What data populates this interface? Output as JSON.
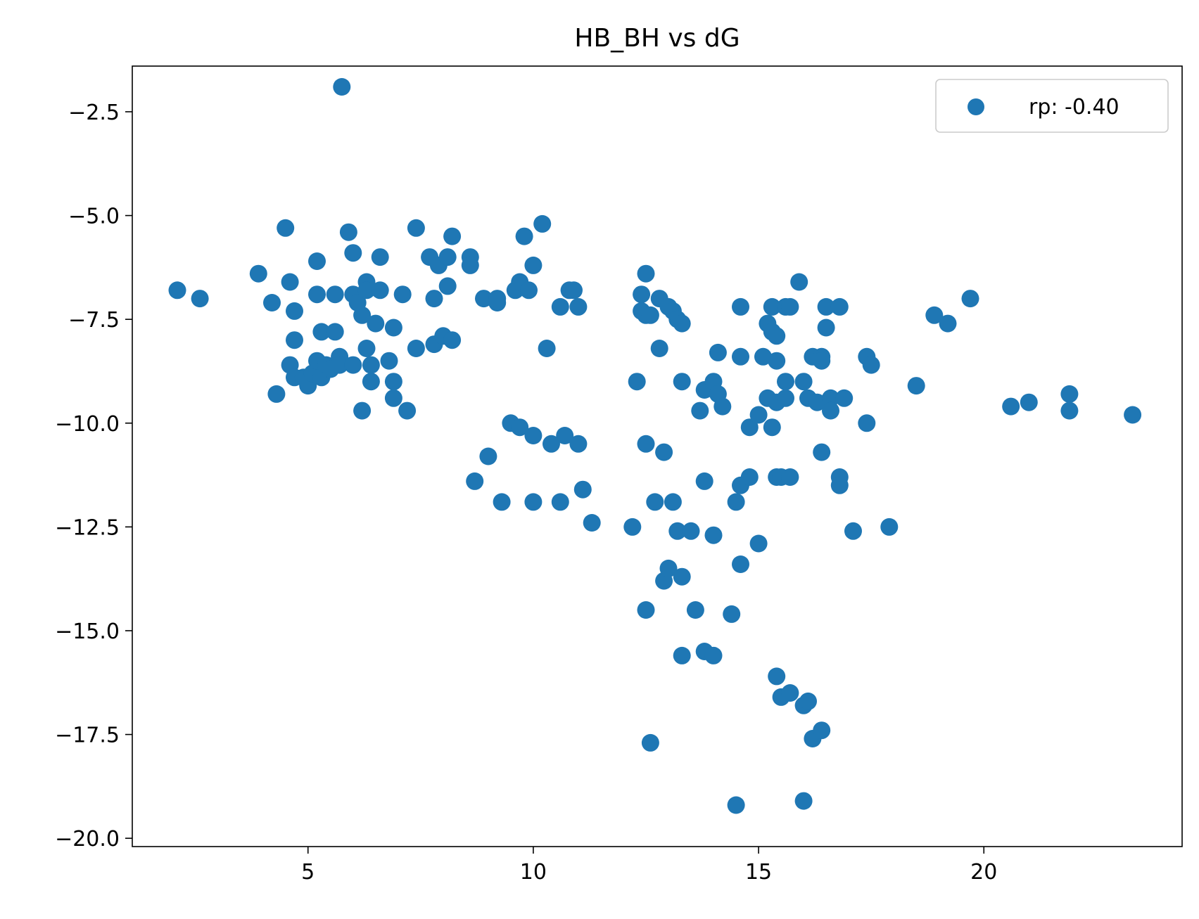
{
  "chart_data": {
    "type": "scatter",
    "title": "HB_BH vs dG",
    "xlabel": "",
    "ylabel": "",
    "xlim": [
      1.1,
      24.4
    ],
    "ylim": [
      -20.2,
      -1.4
    ],
    "xticks": [
      5,
      10,
      15,
      20
    ],
    "yticks": [
      -2.5,
      -5.0,
      -7.5,
      -10.0,
      -12.5,
      -15.0,
      -17.5,
      -20.0
    ],
    "xtick_labels": [
      "5",
      "10",
      "15",
      "20"
    ],
    "ytick_labels": [
      "−2.5",
      "−5.0",
      "−7.5",
      "−10.0",
      "−12.5",
      "−15.0",
      "−17.5",
      "−20.0"
    ],
    "grid": false,
    "legend_position": "top-right",
    "marker_color": "#1f77b4",
    "series": [
      {
        "name": "rp: -0.40",
        "points": [
          [
            2.1,
            -6.8
          ],
          [
            2.6,
            -7.0
          ],
          [
            3.9,
            -6.4
          ],
          [
            4.2,
            -7.1
          ],
          [
            4.3,
            -9.3
          ],
          [
            4.5,
            -5.3
          ],
          [
            4.6,
            -6.6
          ],
          [
            4.6,
            -8.6
          ],
          [
            4.7,
            -7.3
          ],
          [
            4.7,
            -8.0
          ],
          [
            4.7,
            -8.9
          ],
          [
            4.9,
            -8.9
          ],
          [
            5.0,
            -9.1
          ],
          [
            5.1,
            -8.8
          ],
          [
            5.2,
            -6.1
          ],
          [
            5.2,
            -6.9
          ],
          [
            5.2,
            -8.5
          ],
          [
            5.3,
            -7.8
          ],
          [
            5.3,
            -8.9
          ],
          [
            5.4,
            -8.6
          ],
          [
            5.5,
            -8.7
          ],
          [
            5.6,
            -6.9
          ],
          [
            5.6,
            -7.8
          ],
          [
            5.7,
            -8.4
          ],
          [
            5.7,
            -8.6
          ],
          [
            5.75,
            -1.9
          ],
          [
            5.9,
            -5.4
          ],
          [
            6.0,
            -5.9
          ],
          [
            6.0,
            -6.9
          ],
          [
            6.0,
            -8.6
          ],
          [
            6.1,
            -7.1
          ],
          [
            6.2,
            -7.4
          ],
          [
            6.2,
            -9.7
          ],
          [
            6.3,
            -6.6
          ],
          [
            6.3,
            -8.2
          ],
          [
            6.3,
            -6.8
          ],
          [
            6.4,
            -8.6
          ],
          [
            6.4,
            -9.0
          ],
          [
            6.5,
            -7.6
          ],
          [
            6.6,
            -6.0
          ],
          [
            6.6,
            -6.8
          ],
          [
            6.8,
            -8.5
          ],
          [
            6.9,
            -7.7
          ],
          [
            6.9,
            -9.0
          ],
          [
            6.9,
            -9.4
          ],
          [
            7.1,
            -6.9
          ],
          [
            7.2,
            -9.7
          ],
          [
            7.4,
            -8.2
          ],
          [
            7.4,
            -5.3
          ],
          [
            7.7,
            -6.0
          ],
          [
            7.8,
            -7.0
          ],
          [
            7.8,
            -8.1
          ],
          [
            7.9,
            -6.2
          ],
          [
            8.0,
            -7.9
          ],
          [
            8.1,
            -6.0
          ],
          [
            8.1,
            -6.7
          ],
          [
            8.2,
            -5.5
          ],
          [
            8.2,
            -8.0
          ],
          [
            8.6,
            -6.0
          ],
          [
            8.6,
            -6.2
          ],
          [
            8.7,
            -11.4
          ],
          [
            8.9,
            -7.0
          ],
          [
            9.0,
            -10.8
          ],
          [
            9.2,
            -7.1
          ],
          [
            9.2,
            -7.0
          ],
          [
            9.3,
            -11.9
          ],
          [
            9.5,
            -10.0
          ],
          [
            9.6,
            -6.8
          ],
          [
            9.7,
            -6.6
          ],
          [
            9.7,
            -10.1
          ],
          [
            9.8,
            -5.5
          ],
          [
            9.9,
            -6.8
          ],
          [
            10.0,
            -6.2
          ],
          [
            10.0,
            -10.3
          ],
          [
            10.0,
            -11.9
          ],
          [
            10.2,
            -5.2
          ],
          [
            10.3,
            -8.2
          ],
          [
            10.4,
            -10.5
          ],
          [
            10.6,
            -7.2
          ],
          [
            10.6,
            -11.9
          ],
          [
            10.7,
            -10.3
          ],
          [
            10.8,
            -6.8
          ],
          [
            10.9,
            -6.8
          ],
          [
            11.0,
            -7.2
          ],
          [
            11.0,
            -10.5
          ],
          [
            11.1,
            -11.6
          ],
          [
            11.3,
            -12.4
          ],
          [
            12.2,
            -12.5
          ],
          [
            12.3,
            -9.0
          ],
          [
            12.4,
            -6.9
          ],
          [
            12.4,
            -7.3
          ],
          [
            12.5,
            -6.4
          ],
          [
            12.5,
            -7.4
          ],
          [
            12.5,
            -10.5
          ],
          [
            12.5,
            -14.5
          ],
          [
            12.6,
            -7.4
          ],
          [
            12.6,
            -17.7
          ],
          [
            12.7,
            -11.9
          ],
          [
            12.8,
            -7.0
          ],
          [
            12.8,
            -8.2
          ],
          [
            12.9,
            -10.7
          ],
          [
            12.9,
            -13.8
          ],
          [
            13.0,
            -7.2
          ],
          [
            13.0,
            -13.5
          ],
          [
            13.1,
            -7.3
          ],
          [
            13.1,
            -11.9
          ],
          [
            13.2,
            -7.5
          ],
          [
            13.2,
            -12.6
          ],
          [
            13.3,
            -7.6
          ],
          [
            13.3,
            -9.0
          ],
          [
            13.3,
            -13.7
          ],
          [
            13.3,
            -15.6
          ],
          [
            13.5,
            -12.6
          ],
          [
            13.6,
            -14.5
          ],
          [
            13.7,
            -9.7
          ],
          [
            13.8,
            -9.2
          ],
          [
            13.8,
            -11.4
          ],
          [
            13.8,
            -15.5
          ],
          [
            14.0,
            -9.0
          ],
          [
            14.0,
            -12.7
          ],
          [
            14.0,
            -15.6
          ],
          [
            14.1,
            -8.3
          ],
          [
            14.1,
            -9.3
          ],
          [
            14.2,
            -9.6
          ],
          [
            14.4,
            -14.6
          ],
          [
            14.5,
            -11.9
          ],
          [
            14.5,
            -19.2
          ],
          [
            14.6,
            -7.2
          ],
          [
            14.6,
            -8.4
          ],
          [
            14.6,
            -11.5
          ],
          [
            14.6,
            -13.4
          ],
          [
            14.8,
            -10.1
          ],
          [
            14.8,
            -11.3
          ],
          [
            15.0,
            -9.8
          ],
          [
            15.0,
            -12.9
          ],
          [
            15.1,
            -8.4
          ],
          [
            15.2,
            -7.6
          ],
          [
            15.2,
            -9.4
          ],
          [
            15.3,
            -7.2
          ],
          [
            15.3,
            -7.8
          ],
          [
            15.3,
            -10.1
          ],
          [
            15.4,
            -7.9
          ],
          [
            15.4,
            -8.5
          ],
          [
            15.4,
            -9.5
          ],
          [
            15.4,
            -11.3
          ],
          [
            15.4,
            -16.1
          ],
          [
            15.5,
            -11.3
          ],
          [
            15.5,
            -16.6
          ],
          [
            15.6,
            -9.0
          ],
          [
            15.6,
            -7.2
          ],
          [
            15.6,
            -9.4
          ],
          [
            15.7,
            -7.2
          ],
          [
            15.7,
            -11.3
          ],
          [
            15.7,
            -16.5
          ],
          [
            15.9,
            -6.6
          ],
          [
            16.0,
            -9.0
          ],
          [
            16.0,
            -16.8
          ],
          [
            16.0,
            -19.1
          ],
          [
            16.1,
            -9.4
          ],
          [
            16.1,
            -16.7
          ],
          [
            16.2,
            -8.4
          ],
          [
            16.2,
            -17.6
          ],
          [
            16.3,
            -9.5
          ],
          [
            16.4,
            -8.4
          ],
          [
            16.4,
            -8.5
          ],
          [
            16.4,
            -10.7
          ],
          [
            16.4,
            -17.4
          ],
          [
            16.5,
            -7.2
          ],
          [
            16.5,
            -7.7
          ],
          [
            16.6,
            -9.4
          ],
          [
            16.6,
            -9.7
          ],
          [
            16.8,
            -7.2
          ],
          [
            16.8,
            -11.3
          ],
          [
            16.8,
            -11.5
          ],
          [
            16.9,
            -9.4
          ],
          [
            17.1,
            -12.6
          ],
          [
            17.4,
            -8.4
          ],
          [
            17.4,
            -10.0
          ],
          [
            17.5,
            -8.6
          ],
          [
            17.9,
            -12.5
          ],
          [
            18.5,
            -9.1
          ],
          [
            18.9,
            -7.4
          ],
          [
            19.2,
            -7.6
          ],
          [
            19.7,
            -7.0
          ],
          [
            20.6,
            -9.6
          ],
          [
            21.0,
            -9.5
          ],
          [
            21.9,
            -9.3
          ],
          [
            21.9,
            -9.7
          ],
          [
            23.3,
            -9.8
          ]
        ]
      }
    ]
  }
}
